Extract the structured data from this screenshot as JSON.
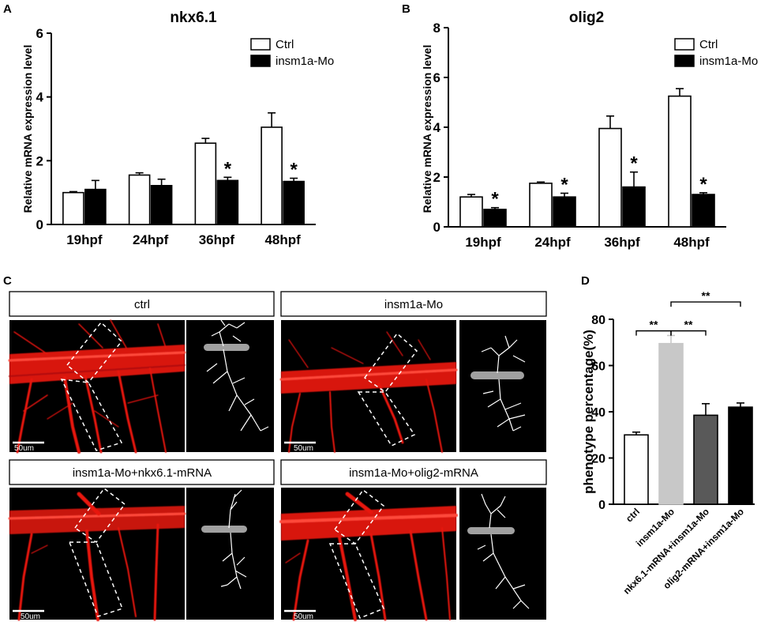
{
  "panel_letters": {
    "a": "A",
    "b": "B",
    "c": "C",
    "d": "D"
  },
  "colors": {
    "ctrl_fill": "#ffffff",
    "mo_fill": "#000000",
    "neuron_red": "#e8140f",
    "d_bars": [
      "#ffffff",
      "#c8c8c8",
      "#595959",
      "#000000"
    ]
  },
  "microscopy": {
    "scale_label": "50um",
    "panels": [
      {
        "label": "ctrl"
      },
      {
        "label": "insm1a-Mo"
      },
      {
        "label": "insm1a-Mo+nkx6.1-mRNA"
      },
      {
        "label": "insm1a-Mo+olig2-mRNA"
      }
    ]
  },
  "chart_data": [
    {
      "id": "A",
      "type": "bar",
      "title": "nkx6.1",
      "ylabel": "Relative mRNA expression level",
      "categories": [
        "19hpf",
        "24hpf",
        "36hpf",
        "48hpf"
      ],
      "ylim": [
        0,
        6
      ],
      "yticks": [
        0,
        2,
        4,
        6
      ],
      "series": [
        {
          "name": "Ctrl",
          "values": [
            1.0,
            1.55,
            2.55,
            3.05
          ],
          "errors": [
            0.03,
            0.07,
            0.15,
            0.45
          ]
        },
        {
          "name": "insm1a-Mo",
          "values": [
            1.1,
            1.22,
            1.38,
            1.35
          ],
          "errors": [
            0.28,
            0.2,
            0.1,
            0.1
          ]
        }
      ],
      "significance": [
        "",
        "",
        "*",
        "*"
      ],
      "legend": "top-right"
    },
    {
      "id": "B",
      "type": "bar",
      "title": "olig2",
      "ylabel": "Relative mRNA expression level",
      "categories": [
        "19hpf",
        "24hpf",
        "36hpf",
        "48hpf"
      ],
      "ylim": [
        0,
        8
      ],
      "yticks": [
        0,
        2,
        4,
        6,
        8
      ],
      "series": [
        {
          "name": "Ctrl",
          "values": [
            1.2,
            1.75,
            3.95,
            5.25
          ],
          "errors": [
            0.1,
            0.05,
            0.5,
            0.3
          ]
        },
        {
          "name": "insm1a-Mo",
          "values": [
            0.7,
            1.2,
            1.6,
            1.3
          ],
          "errors": [
            0.07,
            0.15,
            0.6,
            0.07
          ]
        }
      ],
      "significance": [
        "*",
        "*",
        "*",
        "*"
      ],
      "legend": "top-right"
    },
    {
      "id": "D",
      "type": "bar",
      "title": "",
      "ylabel": "phenotype percentage(%)",
      "categories": [
        "ctrl",
        "insm1a-Mo",
        "nkx6.1-mRNA+insm1a-Mo",
        "olig2-mRNA+insm1a-Mo"
      ],
      "ylim": [
        0,
        80
      ],
      "yticks": [
        0,
        20,
        40,
        60,
        80
      ],
      "values": [
        30,
        69.5,
        38.5,
        42
      ],
      "errors": [
        1.2,
        3.5,
        5,
        1.8
      ],
      "significance_brackets": [
        {
          "from": 0,
          "to": 1,
          "label": "**"
        },
        {
          "from": 1,
          "to": 2,
          "label": "**"
        },
        {
          "from": 1,
          "to": 3,
          "label": "**"
        }
      ]
    }
  ]
}
